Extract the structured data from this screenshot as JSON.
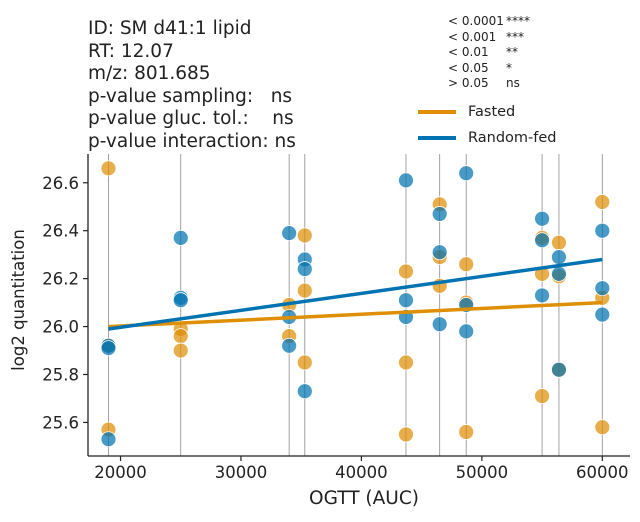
{
  "header": {
    "id_line": "ID: SM d41:1 lipid",
    "rt_line": "RT: 12.07",
    "mz_line": "m/z: 801.685",
    "p_sampling": "p-value sampling:   ns",
    "p_gluc": "p-value gluc. tol.:    ns",
    "p_interaction": "p-value interaction: ns"
  },
  "significance_key": [
    {
      "threshold": "< 0.0001",
      "symbol": "****"
    },
    {
      "threshold": "< 0.001",
      "symbol": "***"
    },
    {
      "threshold": "< 0.01",
      "symbol": "**"
    },
    {
      "threshold": "< 0.05",
      "symbol": "*"
    },
    {
      "threshold": "> 0.05",
      "symbol": "ns"
    }
  ],
  "colors": {
    "fasted": "#de8f05",
    "random_fed": "#0173b2",
    "vline": "#8c8c8c",
    "axis": "#222222"
  },
  "chart_data": {
    "type": "scatter",
    "xlabel": "OGTT (AUC)",
    "ylabel": "log2 quantitation",
    "xlim": [
      17300,
      62300
    ],
    "ylim": [
      25.46,
      26.72
    ],
    "xticks": [
      20000,
      30000,
      40000,
      50000,
      60000
    ],
    "xtick_labels": [
      "20000",
      "30000",
      "40000",
      "50000",
      "60000"
    ],
    "yticks": [
      25.6,
      25.8,
      26.0,
      26.2,
      26.4,
      26.6
    ],
    "ytick_labels": [
      "25.6",
      "25.8",
      "26.0",
      "26.2",
      "26.4",
      "26.6"
    ],
    "vlines": [
      19000,
      25000,
      34000,
      35300,
      43700,
      46500,
      48700,
      55000,
      56400,
      60000
    ],
    "legend_position": "top-right",
    "series": [
      {
        "name": "Fasted",
        "points": [
          [
            19000,
            26.66
          ],
          [
            19000,
            25.92
          ],
          [
            19000,
            25.57
          ],
          [
            25000,
            25.99
          ],
          [
            25000,
            25.96
          ],
          [
            25000,
            25.9
          ],
          [
            34000,
            26.09
          ],
          [
            34000,
            25.96
          ],
          [
            35300,
            26.38
          ],
          [
            35300,
            26.15
          ],
          [
            35300,
            25.85
          ],
          [
            43700,
            26.23
          ],
          [
            43700,
            25.85
          ],
          [
            43700,
            25.55
          ],
          [
            46500,
            26.51
          ],
          [
            46500,
            26.29
          ],
          [
            46500,
            26.17
          ],
          [
            48700,
            26.26
          ],
          [
            48700,
            26.1
          ],
          [
            48700,
            25.56
          ],
          [
            55000,
            26.37
          ],
          [
            55000,
            26.22
          ],
          [
            55000,
            25.71
          ],
          [
            56400,
            26.35
          ],
          [
            56400,
            26.21
          ],
          [
            56400,
            25.82
          ],
          [
            60000,
            26.52
          ],
          [
            60000,
            26.12
          ],
          [
            60000,
            25.58
          ]
        ],
        "fit": [
          [
            19000,
            26.0
          ],
          [
            60000,
            26.1
          ]
        ]
      },
      {
        "name": "Random-fed",
        "points": [
          [
            19000,
            25.92
          ],
          [
            19000,
            25.91
          ],
          [
            19000,
            25.53
          ],
          [
            25000,
            26.37
          ],
          [
            25000,
            26.12
          ],
          [
            25000,
            26.11
          ],
          [
            34000,
            26.39
          ],
          [
            34000,
            26.04
          ],
          [
            34000,
            25.92
          ],
          [
            35300,
            26.28
          ],
          [
            35300,
            26.24
          ],
          [
            35300,
            25.73
          ],
          [
            43700,
            26.61
          ],
          [
            43700,
            26.11
          ],
          [
            43700,
            26.04
          ],
          [
            46500,
            26.47
          ],
          [
            46500,
            26.31
          ],
          [
            46500,
            26.01
          ],
          [
            48700,
            26.64
          ],
          [
            48700,
            26.09
          ],
          [
            48700,
            25.98
          ],
          [
            55000,
            26.45
          ],
          [
            55000,
            26.36
          ],
          [
            55000,
            26.13
          ],
          [
            56400,
            26.29
          ],
          [
            56400,
            26.22
          ],
          [
            56400,
            25.82
          ],
          [
            60000,
            26.4
          ],
          [
            60000,
            26.16
          ],
          [
            60000,
            26.05
          ]
        ],
        "fit": [
          [
            19000,
            25.99
          ],
          [
            60000,
            26.28
          ]
        ]
      }
    ]
  }
}
